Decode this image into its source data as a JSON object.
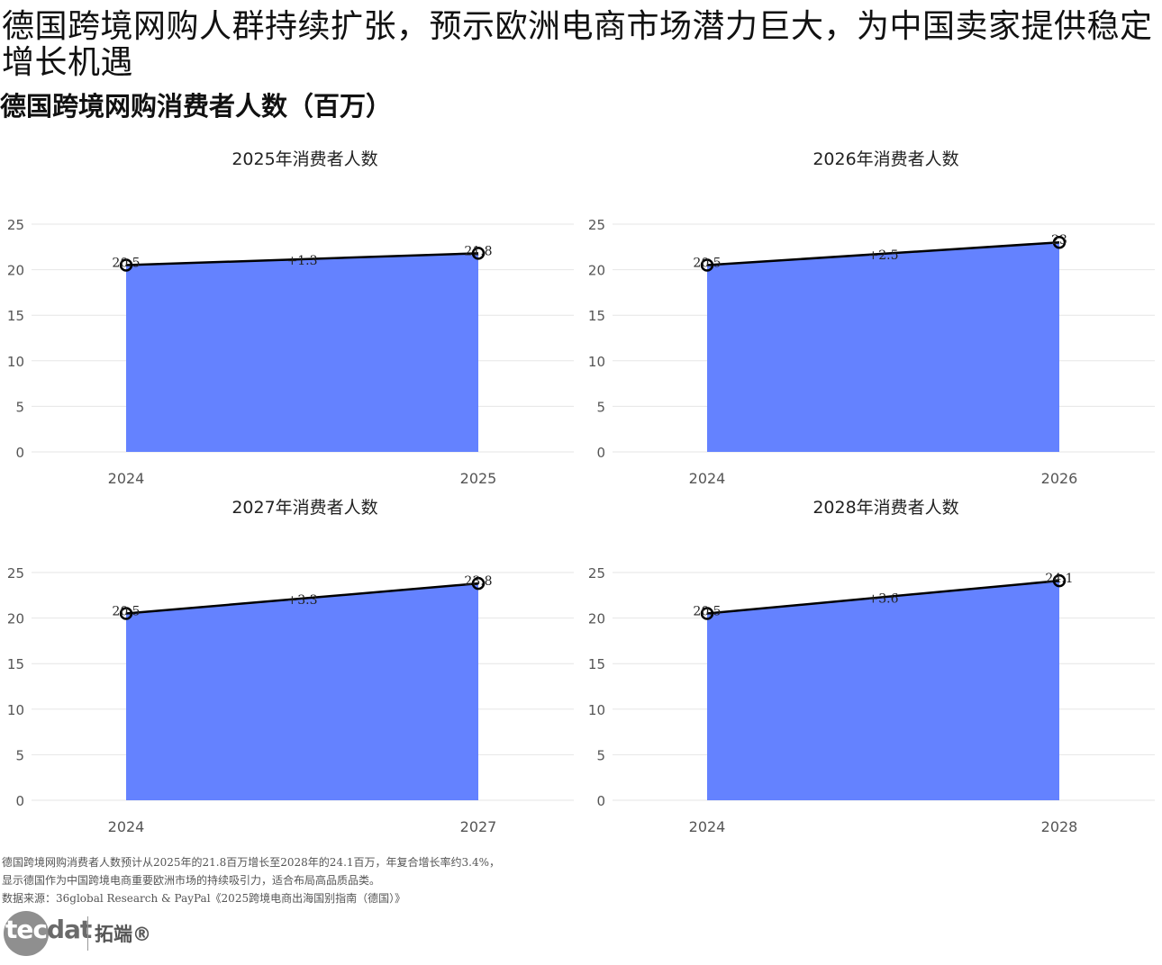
{
  "title": "德国跨境网购人群持续扩张，预示欧洲电商市场潜力巨大，为中国卖家提供稳定增长机遇",
  "subtitle": "德国跨境网购消费者人数（百万）",
  "chart_data": [
    {
      "type": "area",
      "title": "2025年消费者人数",
      "x": [
        "2024",
        "2025"
      ],
      "values": [
        20.5,
        21.8
      ],
      "point_labels": [
        "20.5",
        "21.8"
      ],
      "change_label": "+1.3",
      "ylim": [
        0,
        25
      ],
      "yticks": [
        "0",
        "5",
        "10",
        "15",
        "20",
        "25"
      ],
      "grid": true
    },
    {
      "type": "area",
      "title": "2026年消费者人数",
      "x": [
        "2024",
        "2026"
      ],
      "values": [
        20.5,
        23
      ],
      "point_labels": [
        "20.5",
        "23"
      ],
      "change_label": "+2.5",
      "ylim": [
        0,
        25
      ],
      "yticks": [
        "0",
        "5",
        "10",
        "15",
        "20",
        "25"
      ],
      "grid": true
    },
    {
      "type": "area",
      "title": "2027年消费者人数",
      "x": [
        "2024",
        "2027"
      ],
      "values": [
        20.5,
        23.8
      ],
      "point_labels": [
        "20.5",
        "23.8"
      ],
      "change_label": "+3.3",
      "ylim": [
        0,
        25
      ],
      "yticks": [
        "0",
        "5",
        "10",
        "15",
        "20",
        "25"
      ],
      "grid": true
    },
    {
      "type": "area",
      "title": "2028年消费者人数",
      "x": [
        "2024",
        "2028"
      ],
      "values": [
        20.5,
        24.1
      ],
      "point_labels": [
        "20.5",
        "24.1"
      ],
      "change_label": "+3.6",
      "ylim": [
        0,
        25
      ],
      "yticks": [
        "0",
        "5",
        "10",
        "15",
        "20",
        "25"
      ],
      "grid": true
    }
  ],
  "colors": {
    "area": "#6482ff",
    "line": "#000000",
    "grid": "#e6e6e6",
    "tick_text": "#555555"
  },
  "notes": {
    "line1": "德国跨境网购消费者人数预计从2025年的21.8百万增长至2028年的24.1百万，年复合增长率约3.4%，",
    "line2": "显示德国作为中国跨境电商重要欧洲市场的持续吸引力，适合布局高品质品类。",
    "source": "数据来源：36global Research & PayPal《2025跨境电商出海国别指南（德国）》"
  },
  "logo": {
    "text_outer": "tec",
    "text_inner": "dat",
    "chinese": "拓端®"
  }
}
